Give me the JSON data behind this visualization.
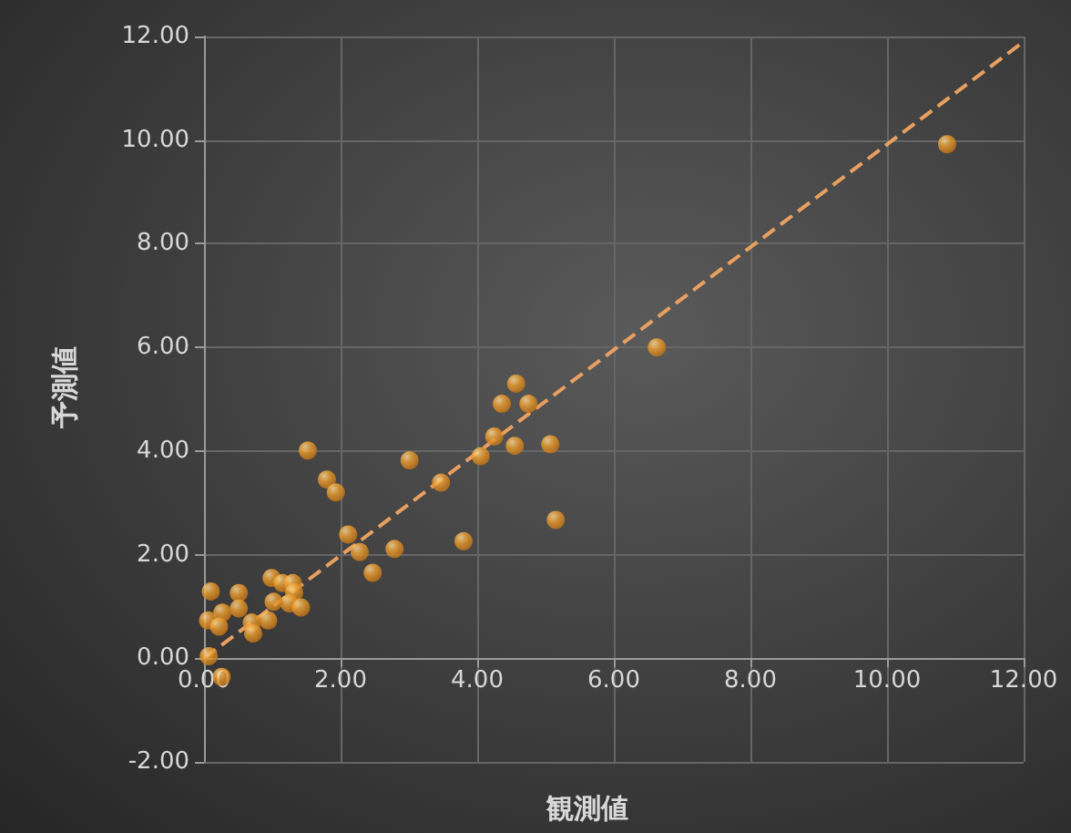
{
  "chart_data": {
    "type": "scatter",
    "xlabel": "観測値",
    "ylabel": "予測値",
    "xlim": [
      0,
      12
    ],
    "ylim": [
      -2,
      12
    ],
    "xticks": [
      {
        "value": 0,
        "label": "0.00"
      },
      {
        "value": 2,
        "label": "2.00"
      },
      {
        "value": 4,
        "label": "4.00"
      },
      {
        "value": 6,
        "label": "6.00"
      },
      {
        "value": 8,
        "label": "8.00"
      },
      {
        "value": 10,
        "label": "10.00"
      },
      {
        "value": 12,
        "label": "12.00"
      }
    ],
    "yticks": [
      {
        "value": -2,
        "label": "-2.00"
      },
      {
        "value": 0,
        "label": "0.00"
      },
      {
        "value": 2,
        "label": "2.00"
      },
      {
        "value": 4,
        "label": "4.00"
      },
      {
        "value": 6,
        "label": "6.00"
      },
      {
        "value": 8,
        "label": "8.00"
      },
      {
        "value": 10,
        "label": "10.00"
      },
      {
        "value": 12,
        "label": "12.00"
      }
    ],
    "grid": true,
    "marker": "circle",
    "series": [
      {
        "color": "#f0a030",
        "x": [
          10.88,
          6.63,
          4.57,
          4.36,
          4.75,
          4.25,
          4.55,
          5.07,
          5.15,
          4.05,
          3.47,
          3.8,
          3.01,
          1.52,
          1.8,
          1.93,
          2.11,
          2.28,
          2.47,
          2.79,
          0.99,
          1.15,
          1.3,
          1.32,
          1.25,
          1.42,
          1.02,
          0.94,
          0.7,
          0.72,
          0.51,
          0.51,
          0.1,
          0.06,
          0.27,
          0.22,
          0.07,
          0.26
        ],
        "values": [
          9.92,
          6.0,
          5.3,
          4.91,
          4.91,
          4.28,
          4.1,
          4.13,
          2.67,
          3.9,
          3.39,
          2.26,
          3.82,
          4.01,
          3.45,
          3.2,
          2.39,
          2.05,
          1.65,
          2.11,
          1.55,
          1.45,
          1.45,
          1.27,
          1.06,
          0.98,
          1.09,
          0.73,
          0.69,
          0.48,
          1.26,
          0.96,
          1.29,
          0.73,
          0.88,
          0.61,
          0.04,
          -0.36
        ]
      },
      {
        "type": "line",
        "color": "#e8a060",
        "line_style": "dashed",
        "marker": "none",
        "x": [
          0,
          12
        ],
        "values": [
          0,
          11.9
        ]
      }
    ]
  }
}
